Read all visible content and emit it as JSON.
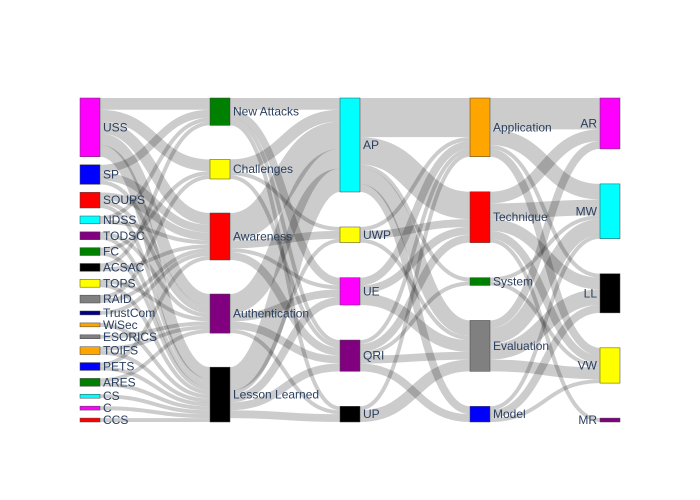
{
  "chart_data": {
    "type": "sankey",
    "node_columns": [
      [
        "USS",
        "SP",
        "SOUPS",
        "NDSS",
        "TODSC",
        "FC",
        "ACSAC",
        "TOPS",
        "RAID",
        "TrustCom",
        "WiSec",
        "ESORICS",
        "TOIFS",
        "PETS",
        "ARES",
        "CS",
        "C",
        "CCS"
      ],
      [
        "New Attacks",
        "Challenges",
        "Awareness",
        "Authentication",
        "Lesson Learned"
      ],
      [
        "AP",
        "UWP",
        "UE",
        "QRI",
        "UP"
      ],
      [
        "Application",
        "Technique",
        "System",
        "Evaluation",
        "Model"
      ],
      [
        "AR",
        "MW",
        "LL",
        "VW",
        "MR"
      ]
    ],
    "node_colors": {
      "USS": "#ff00ff",
      "SP": "#0000ff",
      "SOUPS": "#ff0000",
      "NDSS": "#00ffff",
      "TODSC": "#800080",
      "FC": "#008000",
      "ACSAC": "#000000",
      "TOPS": "#ffff00",
      "RAID": "#808080",
      "TrustCom": "#00008b",
      "WiSec": "#ffa500",
      "ESORICS": "#808080",
      "TOIFS": "#ffa500",
      "PETS": "#0000ff",
      "ARES": "#008000",
      "CS": "#00ffff",
      "C": "#ff00ff",
      "CCS": "#ff0000",
      "New Attacks": "#008000",
      "Challenges": "#ffff00",
      "Awareness": "#ff0000",
      "Authentication": "#800080",
      "Lesson Learned": "#000000",
      "AP": "#00ffff",
      "UWP": "#ffff00",
      "UE": "#ff00ff",
      "QRI": "#800080",
      "UP": "#000000",
      "Application": "#ffa500",
      "Technique": "#ff0000",
      "System": "#008000",
      "Evaluation": "#808080",
      "Model": "#0000ff",
      "AR": "#ff00ff",
      "MW": "#00ffff",
      "LL": "#000000",
      "VW": "#ffff00",
      "MR": "#800080"
    },
    "links": [
      {
        "source": "USS",
        "target": "New Attacks",
        "value": 3
      },
      {
        "source": "USS",
        "target": "Challenges",
        "value": 3
      },
      {
        "source": "USS",
        "target": "Awareness",
        "value": 3
      },
      {
        "source": "USS",
        "target": "Authentication",
        "value": 3
      },
      {
        "source": "USS",
        "target": "Lesson Learned",
        "value": 3
      },
      {
        "source": "SP",
        "target": "New Attacks",
        "value": 2
      },
      {
        "source": "SP",
        "target": "Awareness",
        "value": 2
      },
      {
        "source": "SP",
        "target": "Authentication",
        "value": 1
      },
      {
        "source": "SOUPS",
        "target": "Awareness",
        "value": 2
      },
      {
        "source": "SOUPS",
        "target": "Authentication",
        "value": 1
      },
      {
        "source": "SOUPS",
        "target": "Lesson Learned",
        "value": 1
      },
      {
        "source": "NDSS",
        "target": "New Attacks",
        "value": 1
      },
      {
        "source": "NDSS",
        "target": "Awareness",
        "value": 1
      },
      {
        "source": "TODSC",
        "target": "Authentication",
        "value": 1
      },
      {
        "source": "TODSC",
        "target": "Lesson Learned",
        "value": 1
      },
      {
        "source": "FC",
        "target": "Challenges",
        "value": 1
      },
      {
        "source": "FC",
        "target": "Lesson Learned",
        "value": 1
      },
      {
        "source": "ACSAC",
        "target": "New Attacks",
        "value": 1
      },
      {
        "source": "ACSAC",
        "target": "Awareness",
        "value": 1
      },
      {
        "source": "TOPS",
        "target": "Authentication",
        "value": 1
      },
      {
        "source": "TOPS",
        "target": "Lesson Learned",
        "value": 1
      },
      {
        "source": "RAID",
        "target": "Challenges",
        "value": 1
      },
      {
        "source": "RAID",
        "target": "Awareness",
        "value": 1
      },
      {
        "source": "TrustCom",
        "target": "Awareness",
        "value": 1
      },
      {
        "source": "WiSec",
        "target": "Lesson Learned",
        "value": 1
      },
      {
        "source": "ESORICS",
        "target": "Authentication",
        "value": 1
      },
      {
        "source": "TOIFS",
        "target": "Authentication",
        "value": 1
      },
      {
        "source": "TOIFS",
        "target": "Lesson Learned",
        "value": 1
      },
      {
        "source": "PETS",
        "target": "Awareness",
        "value": 1
      },
      {
        "source": "PETS",
        "target": "Lesson Learned",
        "value": 1
      },
      {
        "source": "ARES",
        "target": "Authentication",
        "value": 1
      },
      {
        "source": "ARES",
        "target": "Lesson Learned",
        "value": 1
      },
      {
        "source": "CS",
        "target": "Lesson Learned",
        "value": 1
      },
      {
        "source": "C",
        "target": "Lesson Learned",
        "value": 1
      },
      {
        "source": "CCS",
        "target": "Lesson Learned",
        "value": 1
      },
      {
        "source": "New Attacks",
        "target": "AP",
        "value": 3
      },
      {
        "source": "New Attacks",
        "target": "UE",
        "value": 2
      },
      {
        "source": "New Attacks",
        "target": "QRI",
        "value": 1
      },
      {
        "source": "New Attacks",
        "target": "UP",
        "value": 1
      },
      {
        "source": "Challenges",
        "target": "AP",
        "value": 3
      },
      {
        "source": "Challenges",
        "target": "UWP",
        "value": 1
      },
      {
        "source": "Challenges",
        "target": "QRI",
        "value": 1
      },
      {
        "source": "Awareness",
        "target": "AP",
        "value": 7
      },
      {
        "source": "Awareness",
        "target": "UWP",
        "value": 2
      },
      {
        "source": "Awareness",
        "target": "UE",
        "value": 1
      },
      {
        "source": "Awareness",
        "target": "QRI",
        "value": 2
      },
      {
        "source": "Authentication",
        "target": "AP",
        "value": 5
      },
      {
        "source": "Authentication",
        "target": "UE",
        "value": 2
      },
      {
        "source": "Authentication",
        "target": "QRI",
        "value": 2
      },
      {
        "source": "Authentication",
        "target": "UP",
        "value": 1
      },
      {
        "source": "Lesson Learned",
        "target": "AP",
        "value": 6
      },
      {
        "source": "Lesson Learned",
        "target": "UWP",
        "value": 1
      },
      {
        "source": "Lesson Learned",
        "target": "UE",
        "value": 2
      },
      {
        "source": "Lesson Learned",
        "target": "QRI",
        "value": 2
      },
      {
        "source": "Lesson Learned",
        "target": "UP",
        "value": 2
      },
      {
        "source": "AP",
        "target": "Application",
        "value": 10
      },
      {
        "source": "AP",
        "target": "Technique",
        "value": 7
      },
      {
        "source": "AP",
        "target": "System",
        "value": 1
      },
      {
        "source": "AP",
        "target": "Evaluation",
        "value": 4
      },
      {
        "source": "AP",
        "target": "Model",
        "value": 2
      },
      {
        "source": "UWP",
        "target": "Application",
        "value": 1
      },
      {
        "source": "UWP",
        "target": "Technique",
        "value": 2
      },
      {
        "source": "UWP",
        "target": "Evaluation",
        "value": 1
      },
      {
        "source": "UE",
        "target": "Application",
        "value": 2
      },
      {
        "source": "UE",
        "target": "Technique",
        "value": 2
      },
      {
        "source": "UE",
        "target": "Evaluation",
        "value": 3
      },
      {
        "source": "QRI",
        "target": "Application",
        "value": 1
      },
      {
        "source": "QRI",
        "target": "Technique",
        "value": 2
      },
      {
        "source": "QRI",
        "target": "System",
        "value": 1
      },
      {
        "source": "QRI",
        "target": "Evaluation",
        "value": 2
      },
      {
        "source": "QRI",
        "target": "Model",
        "value": 2
      },
      {
        "source": "UP",
        "target": "Application",
        "value": 1
      },
      {
        "source": "UP",
        "target": "Evaluation",
        "value": 3
      },
      {
        "source": "Application",
        "target": "AR",
        "value": 8
      },
      {
        "source": "Application",
        "target": "MW",
        "value": 4
      },
      {
        "source": "Application",
        "target": "LL",
        "value": 1
      },
      {
        "source": "Application",
        "target": "VW",
        "value": 2
      },
      {
        "source": "Technique",
        "target": "AR",
        "value": 3
      },
      {
        "source": "Technique",
        "target": "MW",
        "value": 4
      },
      {
        "source": "Technique",
        "target": "LL",
        "value": 3
      },
      {
        "source": "Technique",
        "target": "VW",
        "value": 2
      },
      {
        "source": "Technique",
        "target": "MR",
        "value": 1
      },
      {
        "source": "System",
        "target": "MW",
        "value": 1
      },
      {
        "source": "System",
        "target": "VW",
        "value": 1
      },
      {
        "source": "Evaluation",
        "target": "AR",
        "value": 2
      },
      {
        "source": "Evaluation",
        "target": "MW",
        "value": 4
      },
      {
        "source": "Evaluation",
        "target": "LL",
        "value": 4
      },
      {
        "source": "Evaluation",
        "target": "VW",
        "value": 3
      },
      {
        "source": "Model",
        "target": "MW",
        "value": 1
      },
      {
        "source": "Model",
        "target": "LL",
        "value": 2
      },
      {
        "source": "Model",
        "target": "VW",
        "value": 1
      }
    ]
  }
}
